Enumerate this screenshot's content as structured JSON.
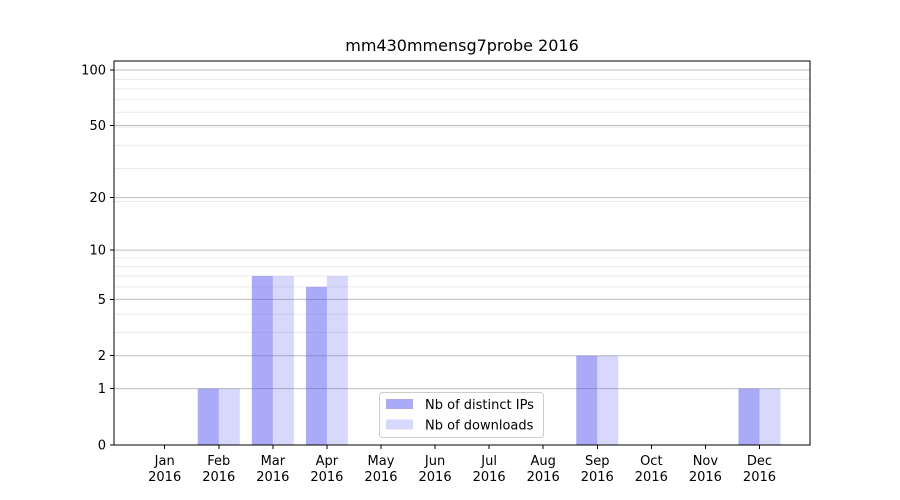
{
  "chart_data": {
    "type": "bar",
    "title": "mm430mmensg7probe 2016",
    "scale": "log1p",
    "xlabel": "",
    "ylabel": "",
    "ylim": [
      0,
      112
    ],
    "grid": "on",
    "legend_position": "lower-center",
    "categories": [
      {
        "month": "Jan",
        "year": "2016"
      },
      {
        "month": "Feb",
        "year": "2016"
      },
      {
        "month": "Mar",
        "year": "2016"
      },
      {
        "month": "Apr",
        "year": "2016"
      },
      {
        "month": "May",
        "year": "2016"
      },
      {
        "month": "Jun",
        "year": "2016"
      },
      {
        "month": "Jul",
        "year": "2016"
      },
      {
        "month": "Aug",
        "year": "2016"
      },
      {
        "month": "Sep",
        "year": "2016"
      },
      {
        "month": "Oct",
        "year": "2016"
      },
      {
        "month": "Nov",
        "year": "2016"
      },
      {
        "month": "Dec",
        "year": "2016"
      }
    ],
    "series": [
      {
        "name": "Nb of distinct IPs",
        "color": "rgba(85,85,240,0.5)",
        "values": [
          0,
          1,
          7,
          6,
          0,
          0,
          0,
          0,
          2,
          0,
          0,
          1
        ]
      },
      {
        "name": "Nb of downloads",
        "color": "rgba(85,85,240,0.23)",
        "values": [
          0,
          1,
          7,
          7,
          0,
          0,
          0,
          0,
          2,
          0,
          0,
          1
        ]
      }
    ],
    "y_ticks": [
      0,
      1,
      2,
      5,
      10,
      20,
      50,
      100
    ],
    "grid_minor_values": [
      3,
      4,
      6,
      7,
      8,
      9,
      19,
      29,
      39,
      49,
      59,
      69,
      79,
      89
    ],
    "grid_major_values": [
      1,
      2,
      5,
      10,
      20,
      50,
      100
    ],
    "colors": {
      "grid_major": "#bdbdbd",
      "grid_minor": "#eaeaea",
      "spine": "#000000",
      "legend_border": "#cccccc",
      "background": "#ffffff"
    }
  }
}
